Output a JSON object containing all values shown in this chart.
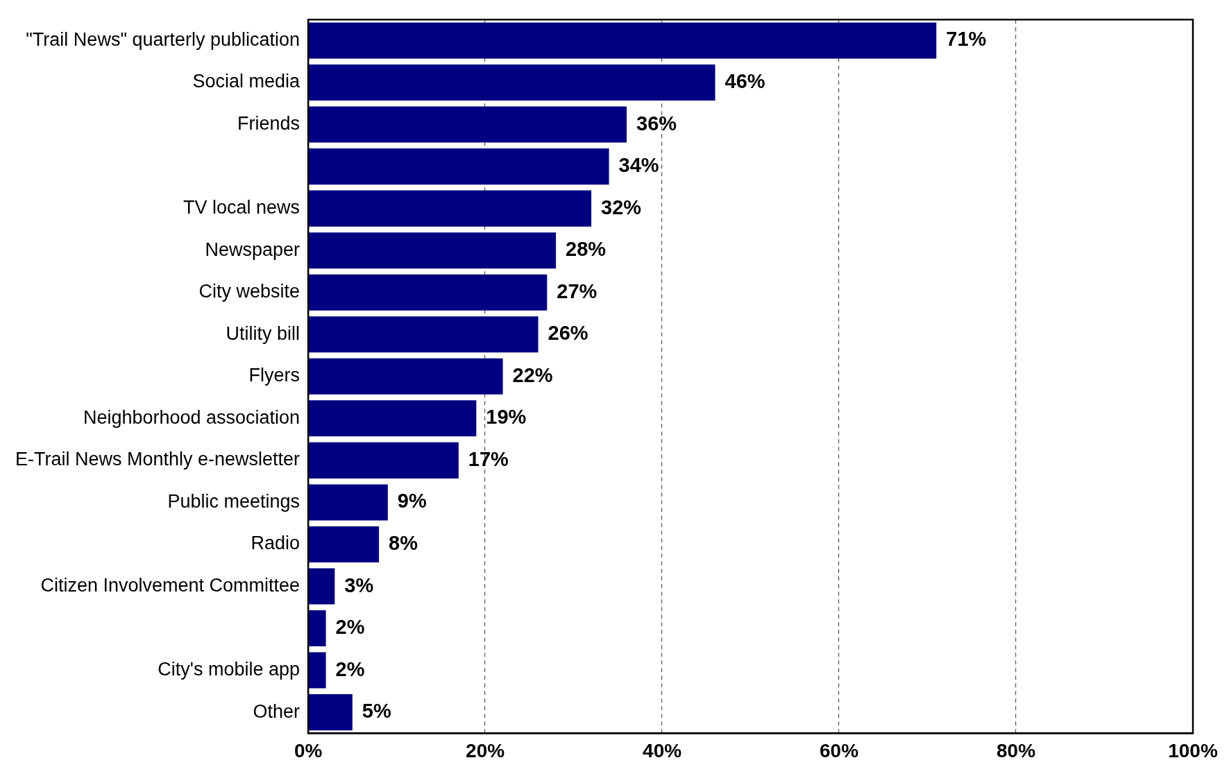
{
  "chart_data": {
    "type": "bar",
    "orientation": "horizontal",
    "categories": [
      "\"Trail News\" quarterly publication",
      "Social media",
      "Friends",
      null,
      "TV local news",
      "Newspaper",
      "City website",
      "Utility bill",
      "Flyers",
      "Neighborhood association",
      "E-Trail News Monthly e-newsletter",
      "Public meetings",
      "Radio",
      "Citizen Involvement Committee",
      null,
      "City's mobile app",
      "Other"
    ],
    "values": [
      71,
      46,
      36,
      34,
      32,
      28,
      27,
      26,
      22,
      19,
      17,
      9,
      8,
      3,
      2,
      2,
      5
    ],
    "color": "#000080",
    "xlim": [
      0,
      100
    ],
    "xticks": [
      {
        "value": 0,
        "label": "0%"
      },
      {
        "value": 20,
        "label": "20%"
      },
      {
        "value": 40,
        "label": "40%"
      },
      {
        "value": 60,
        "label": "60%"
      },
      {
        "value": 80,
        "label": "80%"
      },
      {
        "value": 100,
        "label": "100%"
      }
    ],
    "grid": "x",
    "value_labels": [
      "71%",
      "46%",
      "36%",
      "34%",
      "32%",
      "28%",
      "27%",
      "26%",
      "22%",
      "19%",
      "17%",
      "9%",
      "8%",
      "3%",
      "2%",
      "2%",
      "5%"
    ],
    "legend": false
  }
}
